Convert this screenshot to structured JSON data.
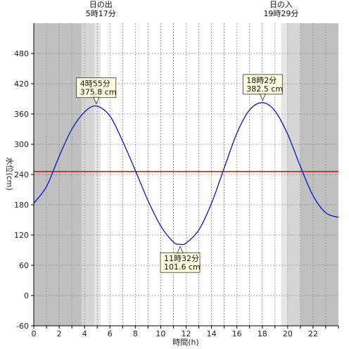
{
  "chart_data": {
    "type": "line",
    "xlabel": "時間(h)",
    "ylabel": "水位(cm)",
    "xlim": [
      0,
      24
    ],
    "ylim": [
      -60,
      540
    ],
    "x_ticks": [
      0,
      2,
      4,
      6,
      8,
      10,
      12,
      14,
      16,
      18,
      20,
      22
    ],
    "y_ticks": [
      -60,
      0,
      60,
      120,
      180,
      240,
      300,
      360,
      420,
      480
    ],
    "reference_line": {
      "y": 246,
      "color": "#e00000"
    },
    "sunrise": {
      "label": "日の出",
      "time": "5時17分",
      "hour": 5.28
    },
    "sunset": {
      "label": "日の入",
      "time": "19時29分",
      "hour": 19.48
    },
    "series": [
      {
        "color": "#0000cc",
        "x": [
          0,
          1,
          2,
          3,
          4,
          4.92,
          6,
          7,
          8,
          9,
          10,
          11,
          11.53,
          12,
          13,
          14,
          15,
          16,
          17,
          18.03,
          19,
          20,
          21,
          22,
          23,
          24
        ],
        "y": [
          183,
          216,
          276,
          330,
          364,
          375.8,
          356,
          306,
          248,
          188,
          138,
          106,
          101.6,
          104,
          130,
          183,
          253,
          322,
          368,
          382.5,
          366,
          320,
          256,
          198,
          164,
          155
        ]
      }
    ],
    "annotations": [
      {
        "time": "4時55分",
        "value": "375.8 cm",
        "x": 4.92,
        "y": 375.8,
        "placement": "above"
      },
      {
        "time": "11時32分",
        "value": "101.6 cm",
        "x": 11.53,
        "y": 101.6,
        "placement": "below"
      },
      {
        "time": "18時2分",
        "value": "382.5 cm",
        "x": 18.03,
        "y": 382.5,
        "placement": "above"
      }
    ],
    "colors": {
      "night": "#c0c0c0",
      "twilight_dark": "#d6d6d6",
      "twilight_light": "#e6e6e6",
      "day": "#ffffff",
      "annotation_fill": "#ffffe0"
    }
  }
}
